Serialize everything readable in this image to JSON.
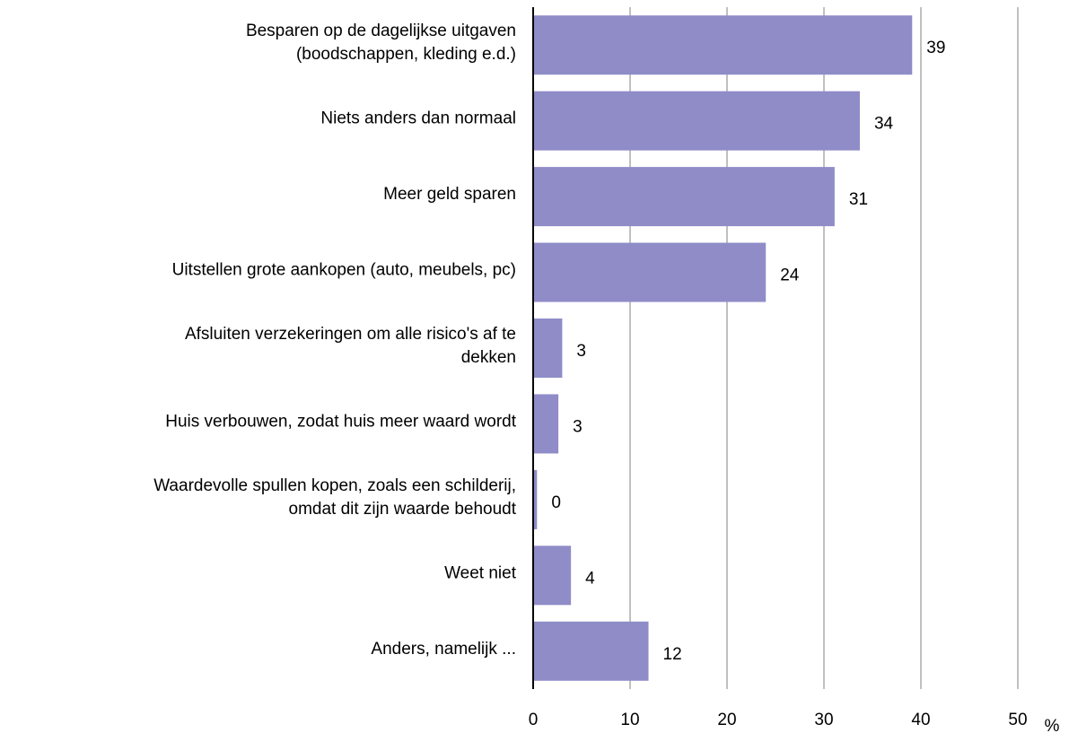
{
  "chart_data": {
    "type": "barh",
    "categories": [
      [
        "Besparen op de dagelijkse uitgaven",
        "(boodschappen, kleding e.d.)"
      ],
      [
        "Niets anders dan normaal"
      ],
      [
        "Meer geld sparen"
      ],
      [
        "Uitstellen grote aankopen (auto, meubels, pc)"
      ],
      [
        "Afsluiten verzekeringen om alle risico's af te",
        "dekken"
      ],
      [
        "Huis verbouwen, zodat huis meer waard wordt"
      ],
      [
        "Waardevolle spullen kopen, zoals een schilderij,",
        "omdat dit zijn waarde behoudt"
      ],
      [
        "Weet niet"
      ],
      [
        "Anders, namelijk ..."
      ]
    ],
    "values": [
      39.1,
      33.7,
      31.1,
      24.0,
      3.0,
      2.6,
      0.4,
      3.9,
      11.9
    ],
    "value_labels": [
      "39",
      "34",
      "31",
      "24",
      "3",
      "3",
      "0",
      "4",
      "12"
    ],
    "color": "#8f8cc8",
    "xlim": [
      0,
      50
    ],
    "xticks": [
      0,
      10,
      20,
      30,
      40,
      50
    ],
    "xlabel": "%",
    "grid": true
  }
}
